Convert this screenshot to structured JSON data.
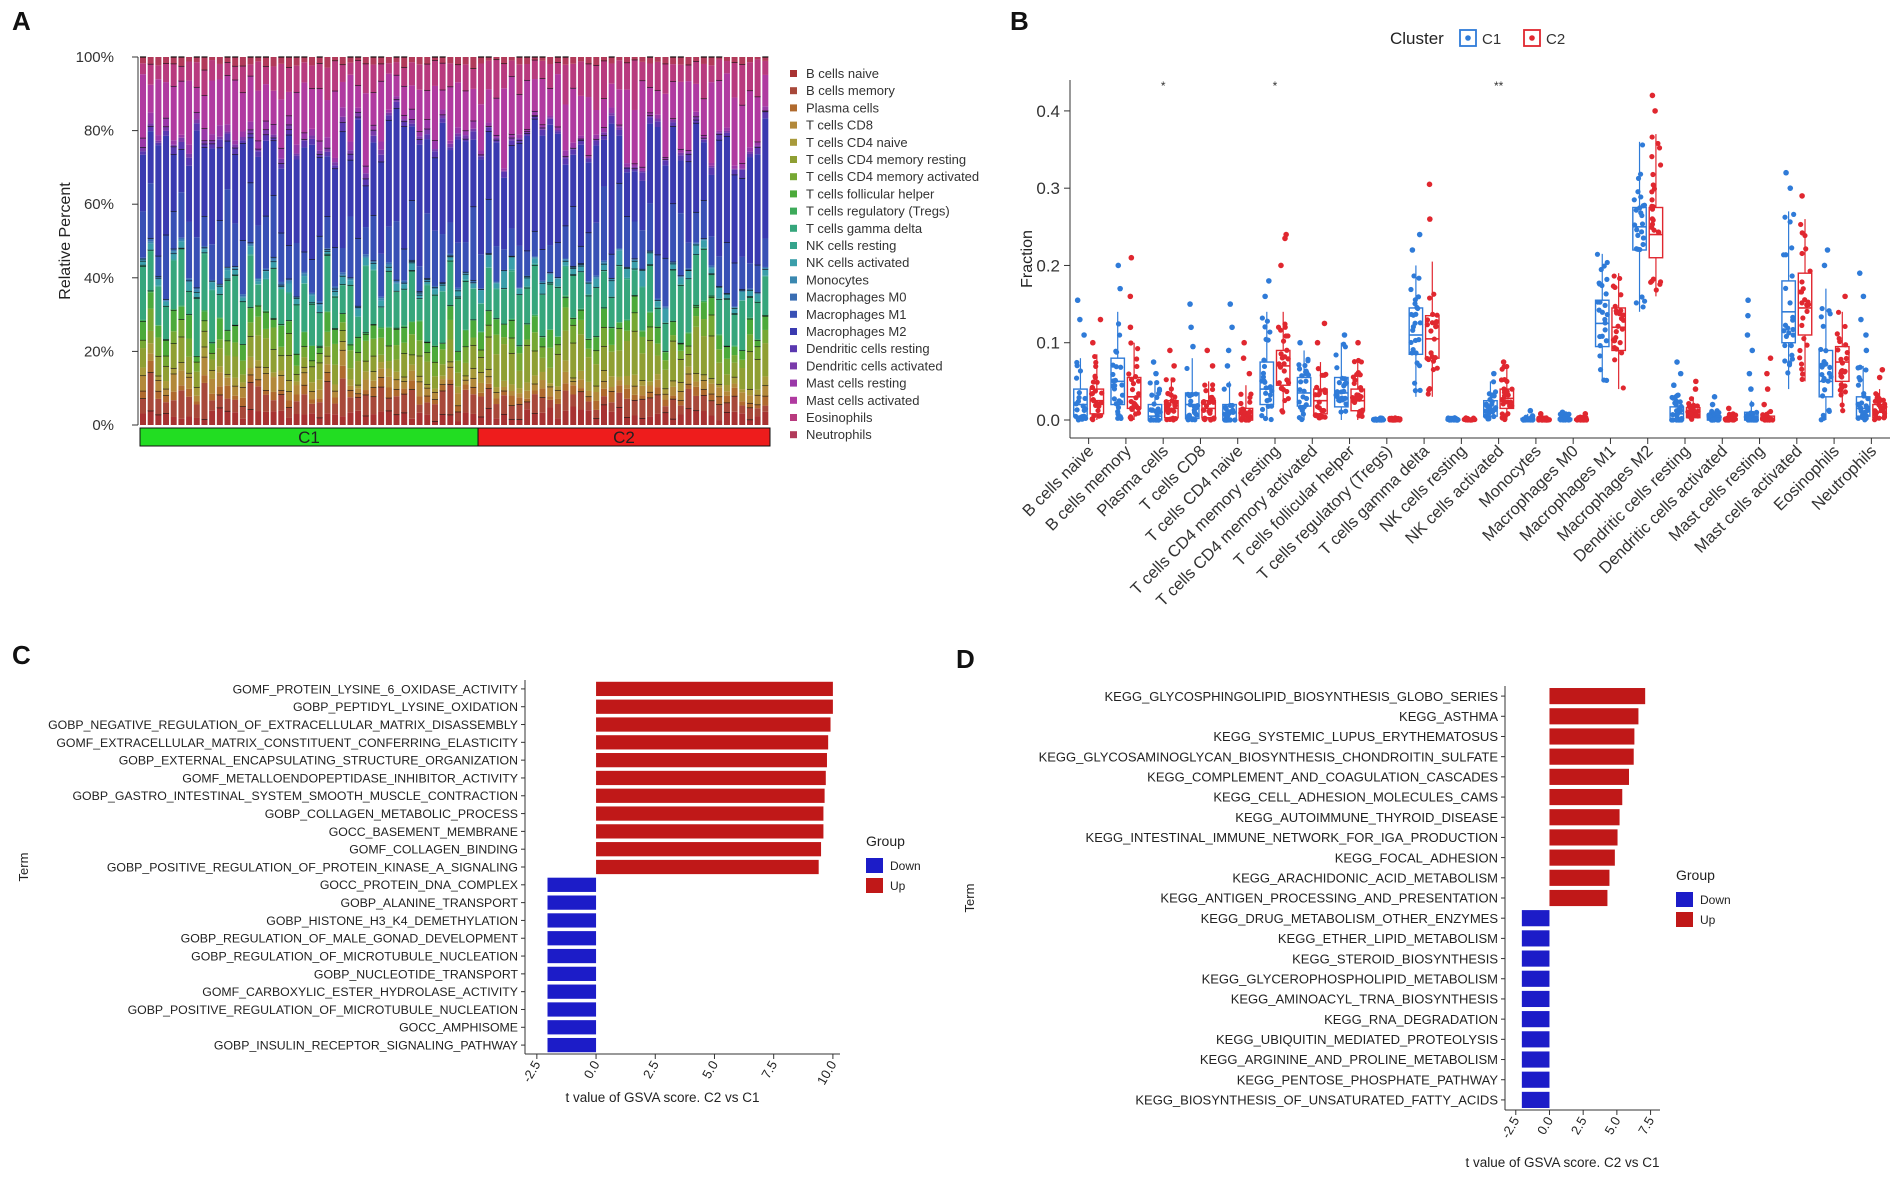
{
  "chart_data": [
    {
      "panel": "A",
      "type": "bar",
      "stacked": true,
      "ylabel": "Relative Percent",
      "y_ticks": [
        "0%",
        "20%",
        "40%",
        "60%",
        "80%",
        "100%"
      ],
      "groups": [
        {
          "name": "C1",
          "samples": 44,
          "color": "#22dd22"
        },
        {
          "name": "C2",
          "samples": 38,
          "color": "#ee1c1c"
        }
      ],
      "cell_types": [
        "B cells naive",
        "B cells memory",
        "Plasma cells",
        "T cells CD8",
        "T cells CD4 naive",
        "T cells CD4 memory resting",
        "T cells CD4 memory activated",
        "T cells follicular helper",
        "T cells regulatory (Tregs)",
        "T cells gamma delta",
        "NK cells resting",
        "NK cells activated",
        "Monocytes",
        "Macrophages M0",
        "Macrophages M1",
        "Macrophages M2",
        "Dendritic cells resting",
        "Dendritic cells activated",
        "Mast cells resting",
        "Mast cells activated",
        "Eosinophils",
        "Neutrophils"
      ],
      "colors": [
        "#a83232",
        "#a8483a",
        "#b06a2e",
        "#b3893a",
        "#a89a3a",
        "#8f9f33",
        "#76a833",
        "#4caa3a",
        "#3daa5a",
        "#36a67c",
        "#35a48c",
        "#3a9eaa",
        "#3a88b0",
        "#3a6eb3",
        "#3850b5",
        "#3a3ab0",
        "#5a38b0",
        "#7a3aaa",
        "#9a38a8",
        "#b03aa0",
        "#b83a7e",
        "#b23a5a"
      ],
      "mean_fractions_C1": [
        0.03,
        0.06,
        0.02,
        0.03,
        0.02,
        0.05,
        0.04,
        0.04,
        0.003,
        0.12,
        0.003,
        0.015,
        0.005,
        0.005,
        0.13,
        0.25,
        0.015,
        0.01,
        0.02,
        0.14,
        0.06,
        0.02
      ],
      "mean_fractions_C2": [
        0.035,
        0.04,
        0.02,
        0.02,
        0.02,
        0.08,
        0.04,
        0.035,
        0.003,
        0.11,
        0.003,
        0.03,
        0.003,
        0.003,
        0.12,
        0.24,
        0.015,
        0.005,
        0.01,
        0.15,
        0.08,
        0.015
      ]
    },
    {
      "panel": "B",
      "type": "box",
      "title": "Cluster",
      "legend": [
        {
          "name": "C1",
          "color": "#2f7bd8"
        },
        {
          "name": "C2",
          "color": "#e0272f"
        }
      ],
      "ylabel": "Fraction",
      "ylim": [
        0,
        0.44
      ],
      "y_ticks": [
        "0.0",
        "0.1",
        "0.2",
        "0.3",
        "0.4"
      ],
      "categories": [
        "B cells naive",
        "B cells memory",
        "Plasma cells",
        "T cells CD8",
        "T cells CD4 naive",
        "T cells CD4 memory resting",
        "T cells CD4 memory activated",
        "T cells follicular helper",
        "T cells regulatory (Tregs)",
        "T cells gamma delta",
        "NK cells resting",
        "NK cells activated",
        "Monocytes",
        "Macrophages M0",
        "Macrophages M1",
        "Macrophages M2",
        "Dendritic cells resting",
        "Dendritic cells activated",
        "Mast cells resting",
        "Mast cells activated",
        "Eosinophils",
        "Neutrophils"
      ],
      "significance": [
        {
          "category": "Plasma cells",
          "label": "*"
        },
        {
          "category": "T cells CD4 memory resting",
          "label": "*"
        },
        {
          "category": "NK cells activated",
          "label": "**"
        }
      ],
      "series": [
        {
          "name": "C1",
          "boxes": [
            [
              0,
              0.005,
              0.02,
              0.04,
              0.08
            ],
            [
              0,
              0.02,
              0.05,
              0.08,
              0.14
            ],
            [
              0,
              0,
              0.005,
              0.02,
              0.05
            ],
            [
              0,
              0.002,
              0.02,
              0.035,
              0.08
            ],
            [
              0,
              0,
              0,
              0.02,
              0.05
            ],
            [
              0,
              0.02,
              0.04,
              0.075,
              0.14
            ],
            [
              0,
              0.018,
              0.035,
              0.055,
              0.09
            ],
            [
              0,
              0.017,
              0.035,
              0.055,
              0.1
            ],
            [
              0,
              0,
              0,
              0.001,
              0.003
            ],
            [
              0.03,
              0.085,
              0.11,
              0.145,
              0.2
            ],
            [
              0,
              0,
              0,
              0.001,
              0.003
            ],
            [
              0,
              0.005,
              0.012,
              0.025,
              0.05
            ],
            [
              0,
              0,
              0,
              0.002,
              0.008
            ],
            [
              0,
              0,
              0,
              0.002,
              0.008
            ],
            [
              0.05,
              0.095,
              0.125,
              0.155,
              0.215
            ],
            [
              0.14,
              0.22,
              0.25,
              0.275,
              0.36
            ],
            [
              0,
              0,
              0.008,
              0.017,
              0.035
            ],
            [
              0,
              0,
              0,
              0.005,
              0.012
            ],
            [
              0,
              0,
              0,
              0.01,
              0.025
            ],
            [
              0.04,
              0.1,
              0.14,
              0.18,
              0.27
            ],
            [
              0,
              0.03,
              0.05,
              0.09,
              0.17
            ],
            [
              0,
              0.005,
              0.015,
              0.03,
              0.07
            ]
          ],
          "outliers": [
            [
              0.11,
              0.13,
              0.155
            ],
            [
              0.17,
              0.2
            ],
            [
              0.06,
              0.075
            ],
            [
              0.095,
              0.12,
              0.15
            ],
            [
              0.07,
              0.09,
              0.12,
              0.15
            ],
            [
              0.16,
              0.18
            ],
            [
              0.1
            ],
            [
              0.11
            ],
            [],
            [
              0.22,
              0.24
            ],
            [],
            [
              0.06
            ],
            [
              0.012
            ],
            [
              0.01
            ],
            [],
            [],
            [
              0.045,
              0.06,
              0.075
            ],
            [
              0.02,
              0.03
            ],
            [
              0.04,
              0.06,
              0.09,
              0.11,
              0.135,
              0.155
            ],
            [
              0.3,
              0.32
            ],
            [
              0.2,
              0.22
            ],
            [
              0.09,
              0.11,
              0.13,
              0.16,
              0.19
            ]
          ]
        },
        {
          "name": "C2",
          "boxes": [
            [
              0,
              0.008,
              0.025,
              0.04,
              0.085
            ],
            [
              0,
              0.015,
              0.03,
              0.055,
              0.1
            ],
            [
              0,
              0.003,
              0.015,
              0.025,
              0.055
            ],
            [
              0,
              0.003,
              0.015,
              0.025,
              0.05
            ],
            [
              0,
              0,
              0,
              0.015,
              0.045
            ],
            [
              0.01,
              0.045,
              0.07,
              0.09,
              0.14
            ],
            [
              0,
              0.008,
              0.025,
              0.04,
              0.075
            ],
            [
              0,
              0.012,
              0.025,
              0.04,
              0.08
            ],
            [
              0,
              0,
              0,
              0.001,
              0.003
            ],
            [
              0.03,
              0.08,
              0.105,
              0.135,
              0.205
            ],
            [
              0,
              0,
              0,
              0.001,
              0.003
            ],
            [
              0,
              0.015,
              0.028,
              0.04,
              0.07
            ],
            [
              0,
              0,
              0,
              0.001,
              0.004
            ],
            [
              0,
              0,
              0,
              0.001,
              0.004
            ],
            [
              0.04,
              0.09,
              0.12,
              0.145,
              0.19
            ],
            [
              0.16,
              0.21,
              0.24,
              0.275,
              0.37
            ],
            [
              0,
              0.003,
              0.01,
              0.016,
              0.03
            ],
            [
              0,
              0,
              0,
              0.002,
              0.008
            ],
            [
              0,
              0,
              0,
              0.005,
              0.012
            ],
            [
              0.05,
              0.11,
              0.145,
              0.19,
              0.26
            ],
            [
              0.01,
              0.05,
              0.075,
              0.095,
              0.14
            ],
            [
              0,
              0.003,
              0.01,
              0.02,
              0.04
            ]
          ],
          "outliers": [
            [
              0.1,
              0.13
            ],
            [
              0.12,
              0.16,
              0.21
            ],
            [
              0.07,
              0.09
            ],
            [
              0.07,
              0.09
            ],
            [
              0.06,
              0.08,
              0.1
            ],
            [
              0.2,
              0.235,
              0.24
            ],
            [
              0.1,
              0.125
            ],
            [
              0.1
            ],
            [],
            [
              0.26,
              0.305
            ],
            [],
            [
              0.075
            ],
            [
              0.008
            ],
            [
              0.008
            ],
            [],
            [
              0.4,
              0.42
            ],
            [
              0.04,
              0.05
            ],
            [
              0.015
            ],
            [
              0.02,
              0.04,
              0.06,
              0.08
            ],
            [
              0.29
            ],
            [
              0.16
            ],
            [
              0.055,
              0.065
            ]
          ]
        }
      ],
      "y_zero_line": true
    },
    {
      "panel": "C",
      "type": "bar",
      "orientation": "horizontal",
      "ylabel": "Term",
      "xlabel": "t value of GSVA score. C2 vs C1",
      "x_ticks": [
        "-2.5",
        "0.0",
        "2.5",
        "5.0",
        "7.5",
        "10.0"
      ],
      "xlim": [
        -3,
        10.3
      ],
      "legend_title": "Group",
      "legend": [
        {
          "name": "Down",
          "color": "#1c1cc8"
        },
        {
          "name": "Up",
          "color": "#c01818"
        }
      ],
      "categories": [
        "GOMF_PROTEIN_LYSINE_6_OXIDASE_ACTIVITY",
        "GOBP_PEPTIDYL_LYSINE_OXIDATION",
        "GOBP_NEGATIVE_REGULATION_OF_EXTRACELLULAR_MATRIX_DISASSEMBLY",
        "GOMF_EXTRACELLULAR_MATRIX_CONSTITUENT_CONFERRING_ELASTICITY",
        "GOBP_EXTERNAL_ENCAPSULATING_STRUCTURE_ORGANIZATION",
        "GOMF_METALLOENDOPEPTIDASE_INHIBITOR_ACTIVITY",
        "GOBP_GASTRO_INTESTINAL_SYSTEM_SMOOTH_MUSCLE_CONTRACTION",
        "GOBP_COLLAGEN_METABOLIC_PROCESS",
        "GOCC_BASEMENT_MEMBRANE",
        "GOMF_COLLAGEN_BINDING",
        "GOBP_POSITIVE_REGULATION_OF_PROTEIN_KINASE_A_SIGNALING",
        "GOCC_PROTEIN_DNA_COMPLEX",
        "GOBP_ALANINE_TRANSPORT",
        "GOBP_HISTONE_H3_K4_DEMETHYLATION",
        "GOBP_REGULATION_OF_MALE_GONAD_DEVELOPMENT",
        "GOBP_REGULATION_OF_MICROTUBULE_NUCLEATION",
        "GOBP_NUCLEOTIDE_TRANSPORT",
        "GOMF_CARBOXYLIC_ESTER_HYDROLASE_ACTIVITY",
        "GOBP_POSITIVE_REGULATION_OF_MICROTUBULE_NUCLEATION",
        "GOCC_AMPHISOME",
        "GOBP_INSULIN_RECEPTOR_SIGNALING_PATHWAY"
      ],
      "values": [
        10.0,
        10.0,
        9.9,
        9.8,
        9.75,
        9.7,
        9.65,
        9.6,
        9.6,
        9.5,
        9.4,
        -2.05,
        -2.05,
        -2.05,
        -2.05,
        -2.05,
        -2.05,
        -2.05,
        -2.05,
        -2.05,
        -2.05
      ],
      "groups": [
        "Up",
        "Up",
        "Up",
        "Up",
        "Up",
        "Up",
        "Up",
        "Up",
        "Up",
        "Up",
        "Up",
        "Down",
        "Down",
        "Down",
        "Down",
        "Down",
        "Down",
        "Down",
        "Down",
        "Down",
        "Down"
      ]
    },
    {
      "panel": "D",
      "type": "bar",
      "orientation": "horizontal",
      "ylabel": "Term",
      "xlabel": "t value of GSVA score. C2 vs C1",
      "x_ticks": [
        "-2.5",
        "0.0",
        "2.5",
        "5.0",
        "7.5"
      ],
      "xlim": [
        -3.3,
        8.2
      ],
      "legend_title": "Group",
      "legend": [
        {
          "name": "Down",
          "color": "#1c1cc8"
        },
        {
          "name": "Up",
          "color": "#c01818"
        }
      ],
      "categories": [
        "KEGG_GLYCOSPHINGOLIPID_BIOSYNTHESIS_GLOBO_SERIES",
        "KEGG_ASTHMA",
        "KEGG_SYSTEMIC_LUPUS_ERYTHEMATOSUS",
        "KEGG_GLYCOSAMINOGLYCAN_BIOSYNTHESIS_CHONDROITIN_SULFATE",
        "KEGG_COMPLEMENT_AND_COAGULATION_CASCADES",
        "KEGG_CELL_ADHESION_MOLECULES_CAMS",
        "KEGG_AUTOIMMUNE_THYROID_DISEASE",
        "KEGG_INTESTINAL_IMMUNE_NETWORK_FOR_IGA_PRODUCTION",
        "KEGG_FOCAL_ADHESION",
        "KEGG_ARACHIDONIC_ACID_METABOLISM",
        "KEGG_ANTIGEN_PROCESSING_AND_PRESENTATION",
        "KEGG_DRUG_METABOLISM_OTHER_ENZYMES",
        "KEGG_ETHER_LIPID_METABOLISM",
        "KEGG_STEROID_BIOSYNTHESIS",
        "KEGG_GLYCEROPHOSPHOLIPID_METABOLISM",
        "KEGG_AMINOACYL_TRNA_BIOSYNTHESIS",
        "KEGG_RNA_DEGRADATION",
        "KEGG_UBIQUITIN_MEDIATED_PROTEOLYSIS",
        "KEGG_ARGININE_AND_PROLINE_METABOLISM",
        "KEGG_PENTOSE_PHOSPHATE_PATHWAY",
        "KEGG_BIOSYNTHESIS_OF_UNSATURATED_FATTY_ACIDS"
      ],
      "values": [
        7.1,
        6.6,
        6.3,
        6.25,
        5.9,
        5.4,
        5.2,
        5.05,
        4.85,
        4.45,
        4.3,
        -2.05,
        -2.05,
        -2.05,
        -2.05,
        -2.05,
        -2.05,
        -2.05,
        -2.05,
        -2.05,
        -2.05
      ],
      "groups": [
        "Up",
        "Up",
        "Up",
        "Up",
        "Up",
        "Up",
        "Up",
        "Up",
        "Up",
        "Up",
        "Up",
        "Down",
        "Down",
        "Down",
        "Down",
        "Down",
        "Down",
        "Down",
        "Down",
        "Down",
        "Down"
      ]
    }
  ],
  "panel_labels": [
    "A",
    "B",
    "C",
    "D"
  ]
}
